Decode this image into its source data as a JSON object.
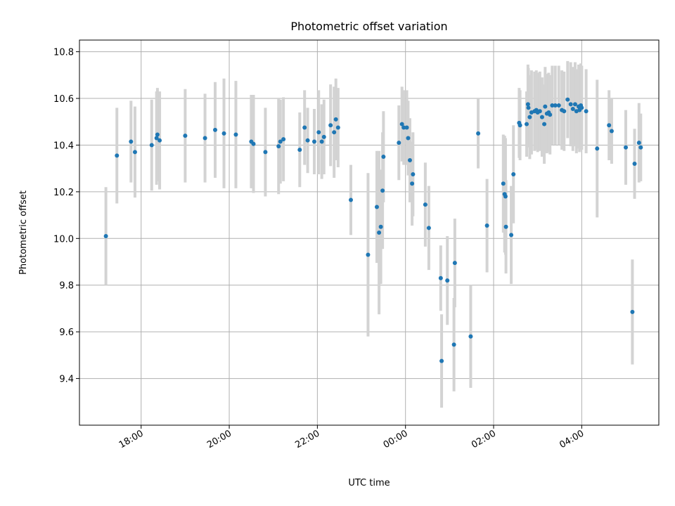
{
  "chart_data": {
    "type": "scatter",
    "title": "Photometric offset variation",
    "xlabel": "UTC time",
    "ylabel": "Photometric offset",
    "x_unit": "hours of UTC day (values above 24 are after midnight)",
    "xlim": [
      16.6,
      29.75
    ],
    "ylim": [
      9.2,
      10.85
    ],
    "x_ticks": [
      {
        "value": 18,
        "label": "18:00"
      },
      {
        "value": 20,
        "label": "20:00"
      },
      {
        "value": 22,
        "label": "22:00"
      },
      {
        "value": 24,
        "label": "00:00"
      },
      {
        "value": 26,
        "label": "02:00"
      },
      {
        "value": 28,
        "label": "04:00"
      }
    ],
    "y_ticks": [
      {
        "value": 9.4,
        "label": "9.4"
      },
      {
        "value": 9.6,
        "label": "9.6"
      },
      {
        "value": 9.8,
        "label": "9.8"
      },
      {
        "value": 10.0,
        "label": "10.0"
      },
      {
        "value": 10.2,
        "label": "10.2"
      },
      {
        "value": 10.4,
        "label": "10.4"
      },
      {
        "value": 10.6,
        "label": "10.6"
      },
      {
        "value": 10.8,
        "label": "10.8"
      }
    ],
    "grid": true,
    "colors": {
      "point": "#1f77b4",
      "errorbar": "#d3d3d3",
      "grid": "#b0b0b0"
    },
    "points": [
      [
        17.2,
        10.01,
        0.21
      ],
      [
        17.45,
        10.355,
        0.205
      ],
      [
        17.77,
        10.415,
        0.175
      ],
      [
        17.86,
        10.37,
        0.195
      ],
      [
        18.24,
        10.4,
        0.195
      ],
      [
        18.35,
        10.43,
        0.2
      ],
      [
        18.37,
        10.445,
        0.2
      ],
      [
        18.42,
        10.42,
        0.21
      ],
      [
        19.0,
        10.44,
        0.2
      ],
      [
        19.45,
        10.43,
        0.19
      ],
      [
        19.68,
        10.465,
        0.205
      ],
      [
        19.88,
        10.45,
        0.235
      ],
      [
        20.15,
        10.445,
        0.23
      ],
      [
        20.5,
        10.415,
        0.2
      ],
      [
        20.55,
        10.405,
        0.21
      ],
      [
        20.82,
        10.37,
        0.19
      ],
      [
        21.12,
        10.395,
        0.205
      ],
      [
        21.16,
        10.415,
        0.18
      ],
      [
        21.23,
        10.425,
        0.18
      ],
      [
        21.6,
        10.38,
        0.16
      ],
      [
        21.71,
        10.475,
        0.16
      ],
      [
        21.78,
        10.42,
        0.14
      ],
      [
        21.93,
        10.415,
        0.14
      ],
      [
        22.03,
        10.455,
        0.18
      ],
      [
        22.1,
        10.415,
        0.16
      ],
      [
        22.15,
        10.435,
        0.16
      ],
      [
        22.3,
        10.485,
        0.175
      ],
      [
        22.38,
        10.455,
        0.195
      ],
      [
        22.42,
        10.51,
        0.175
      ],
      [
        22.47,
        10.475,
        0.17
      ],
      [
        22.76,
        10.165,
        0.15
      ],
      [
        23.15,
        9.93,
        0.35
      ],
      [
        23.35,
        10.135,
        0.24
      ],
      [
        23.4,
        10.025,
        0.35
      ],
      [
        23.44,
        10.05,
        0.245
      ],
      [
        23.48,
        10.205,
        0.25
      ],
      [
        23.5,
        10.35,
        0.195
      ],
      [
        23.85,
        10.41,
        0.16
      ],
      [
        23.92,
        10.49,
        0.16
      ],
      [
        23.96,
        10.475,
        0.16
      ],
      [
        24.03,
        10.475,
        0.16
      ],
      [
        24.06,
        10.43,
        0.16
      ],
      [
        24.1,
        10.335,
        0.18
      ],
      [
        24.15,
        10.235,
        0.18
      ],
      [
        24.17,
        10.275,
        0.18
      ],
      [
        24.45,
        10.145,
        0.18
      ],
      [
        24.53,
        10.045,
        0.18
      ],
      [
        24.8,
        9.83,
        0.14
      ],
      [
        24.82,
        9.475,
        0.2
      ],
      [
        24.95,
        9.82,
        0.19
      ],
      [
        25.1,
        9.545,
        0.2
      ],
      [
        25.12,
        9.895,
        0.19
      ],
      [
        25.48,
        9.58,
        0.22
      ],
      [
        25.65,
        10.45,
        0.15
      ],
      [
        25.85,
        10.055,
        0.2
      ],
      [
        26.22,
        10.235,
        0.21
      ],
      [
        26.25,
        10.19,
        0.25
      ],
      [
        26.27,
        10.18,
        0.25
      ],
      [
        26.28,
        10.05,
        0.2
      ],
      [
        26.4,
        10.015,
        0.21
      ],
      [
        26.45,
        10.275,
        0.21
      ],
      [
        26.58,
        10.495,
        0.15
      ],
      [
        26.6,
        10.485,
        0.15
      ],
      [
        26.75,
        10.49,
        0.14
      ],
      [
        26.78,
        10.575,
        0.17
      ],
      [
        26.79,
        10.56,
        0.17
      ],
      [
        26.82,
        10.52,
        0.18
      ],
      [
        26.86,
        10.54,
        0.18
      ],
      [
        26.93,
        10.545,
        0.17
      ],
      [
        26.97,
        10.55,
        0.17
      ],
      [
        27.0,
        10.54,
        0.17
      ],
      [
        27.05,
        10.545,
        0.17
      ],
      [
        27.1,
        10.52,
        0.17
      ],
      [
        27.15,
        10.49,
        0.17
      ],
      [
        27.17,
        10.565,
        0.17
      ],
      [
        27.21,
        10.535,
        0.17
      ],
      [
        27.25,
        10.54,
        0.17
      ],
      [
        27.28,
        10.53,
        0.17
      ],
      [
        27.33,
        10.57,
        0.17
      ],
      [
        27.4,
        10.57,
        0.17
      ],
      [
        27.48,
        10.57,
        0.17
      ],
      [
        27.55,
        10.55,
        0.17
      ],
      [
        27.6,
        10.545,
        0.17
      ],
      [
        27.68,
        10.595,
        0.165
      ],
      [
        27.75,
        10.575,
        0.18
      ],
      [
        27.8,
        10.555,
        0.18
      ],
      [
        27.85,
        10.575,
        0.18
      ],
      [
        27.88,
        10.545,
        0.18
      ],
      [
        27.93,
        10.565,
        0.18
      ],
      [
        27.95,
        10.55,
        0.18
      ],
      [
        27.98,
        10.57,
        0.18
      ],
      [
        28.0,
        10.56,
        0.18
      ],
      [
        28.1,
        10.545,
        0.18
      ],
      [
        28.35,
        10.385,
        0.295
      ],
      [
        28.62,
        10.485,
        0.15
      ],
      [
        28.68,
        10.46,
        0.14
      ],
      [
        29.0,
        10.39,
        0.16
      ],
      [
        29.15,
        9.685,
        0.225
      ],
      [
        29.2,
        10.32,
        0.15
      ],
      [
        29.3,
        10.41,
        0.17
      ],
      [
        29.34,
        10.39,
        0.145
      ]
    ]
  }
}
